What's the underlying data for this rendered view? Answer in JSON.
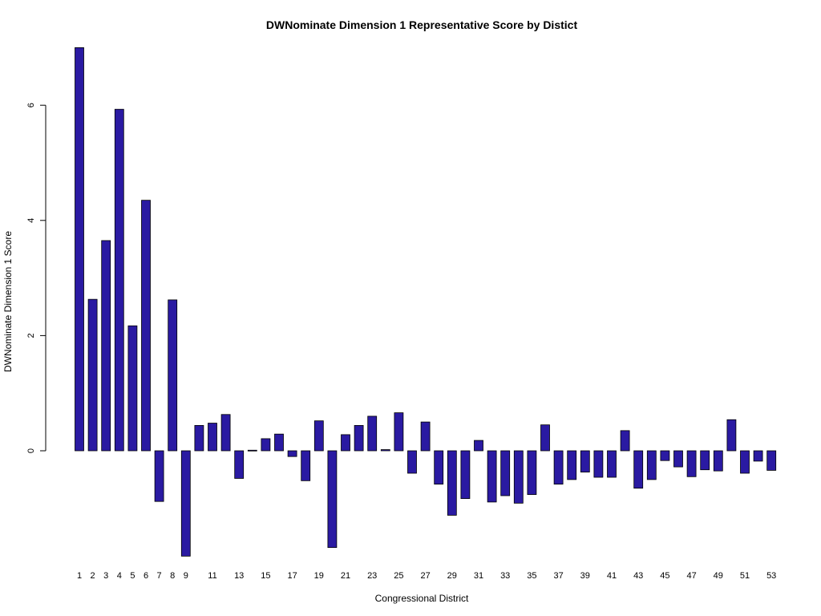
{
  "chart_data": {
    "type": "bar",
    "title": "DWNominate Dimension 1 Representative Score by Distict",
    "xlabel": "Congressional District",
    "ylabel": "DWNominate Dimension 1 Score",
    "ylim": [
      -1.85,
      7.0
    ],
    "yticks": [
      0,
      2,
      4,
      6
    ],
    "bar_color": "#2a1aa2",
    "categories": [
      "1",
      "2",
      "3",
      "4",
      "5",
      "6",
      "7",
      "8",
      "9",
      "10",
      "11",
      "12",
      "13",
      "14",
      "15",
      "16",
      "17",
      "18",
      "19",
      "20",
      "21",
      "22",
      "23",
      "24",
      "25",
      "26",
      "27",
      "28",
      "29",
      "30",
      "31",
      "32",
      "33",
      "34",
      "35",
      "36",
      "37",
      "38",
      "39",
      "40",
      "41",
      "42",
      "43",
      "44",
      "45",
      "46",
      "47",
      "48",
      "49",
      "50",
      "51",
      "52",
      "53"
    ],
    "category_labels_shown": [
      "1",
      "2",
      "3",
      "4",
      "5",
      "6",
      "7",
      "8",
      "9",
      "11",
      "13",
      "15",
      "17",
      "19",
      "21",
      "23",
      "25",
      "27",
      "29",
      "31",
      "33",
      "35",
      "37",
      "39",
      "41",
      "43",
      "45",
      "47",
      "49",
      "51",
      "53"
    ],
    "values": [
      7.0,
      2.63,
      3.65,
      5.93,
      2.17,
      4.35,
      -0.88,
      2.62,
      -1.83,
      0.44,
      0.48,
      0.63,
      -0.48,
      0.01,
      0.21,
      0.29,
      -0.1,
      -0.52,
      0.52,
      -1.68,
      0.28,
      0.44,
      0.6,
      0.02,
      0.66,
      -0.39,
      0.5,
      -0.58,
      -1.12,
      -0.83,
      0.18,
      -0.89,
      -0.78,
      -0.91,
      -0.76,
      0.45,
      -0.58,
      -0.5,
      -0.37,
      -0.46,
      -0.46,
      0.35,
      -0.65,
      -0.5,
      -0.17,
      -0.28,
      -0.45,
      -0.33,
      -0.35,
      0.54,
      -0.39,
      -0.18,
      -0.34
    ],
    "grid": false,
    "legend": "none"
  }
}
